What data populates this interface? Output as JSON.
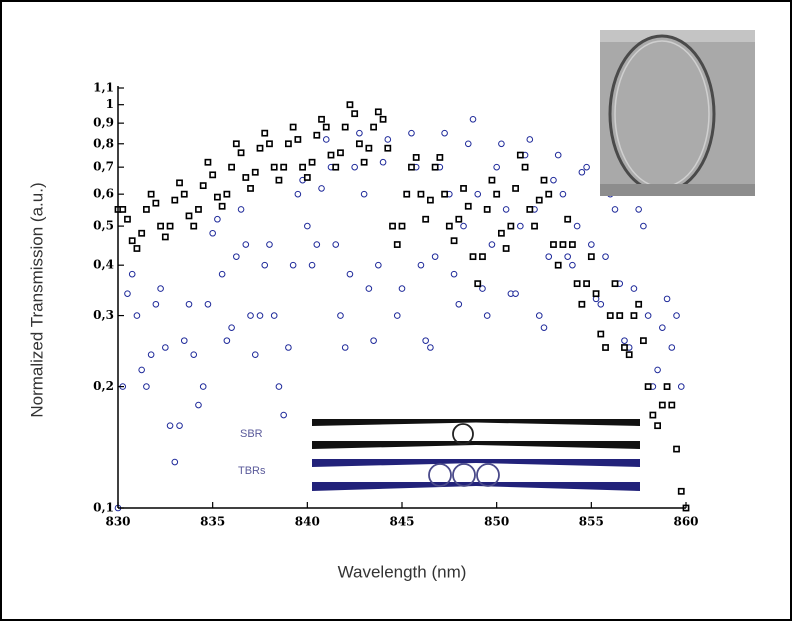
{
  "chart_data": {
    "type": "scatter",
    "xlabel": "Wavelength (nm)",
    "ylabel": "Normalized Transmission (a.u.)",
    "xlim": [
      830,
      860
    ],
    "xticks": [
      830,
      835,
      840,
      845,
      850,
      855,
      860
    ],
    "ylim": [
      0.1,
      1.1
    ],
    "log_y": true,
    "yticks": [
      {
        "value": 0.1,
        "label": "0,1"
      },
      {
        "value": 0.2,
        "label": "0,2"
      },
      {
        "value": 0.3,
        "label": "0,3"
      },
      {
        "value": 0.4,
        "label": "0,4"
      },
      {
        "value": 0.5,
        "label": "0,5"
      },
      {
        "value": 0.6,
        "label": "0,6"
      },
      {
        "value": 0.7,
        "label": "0,7"
      },
      {
        "value": 0.8,
        "label": "0,8"
      },
      {
        "value": 0.9,
        "label": "0,9"
      },
      1,
      {
        "value": 1.1,
        "label": "1,1"
      }
    ],
    "x": [
      830,
      830.25,
      830.5,
      830.75,
      831,
      831.25,
      831.5,
      831.75,
      832,
      832.25,
      832.5,
      832.75,
      833,
      833.25,
      833.5,
      833.75,
      834,
      834.25,
      834.5,
      834.75,
      835,
      835.25,
      835.5,
      835.75,
      836,
      836.25,
      836.5,
      836.75,
      837,
      837.25,
      837.5,
      837.75,
      838,
      838.25,
      838.5,
      838.75,
      839,
      839.25,
      839.5,
      839.75,
      840,
      840.25,
      840.5,
      840.75,
      841,
      841.25,
      841.5,
      841.75,
      842,
      842.25,
      842.5,
      842.75,
      843,
      843.25,
      843.5,
      843.75,
      844,
      844.25,
      844.5,
      844.75,
      845,
      845.25,
      845.5,
      845.75,
      846,
      846.25,
      846.5,
      846.75,
      847,
      847.25,
      847.5,
      847.75,
      848,
      848.25,
      848.5,
      848.75,
      849,
      849.25,
      849.5,
      849.75,
      850,
      850.25,
      850.5,
      850.75,
      851,
      851.25,
      851.5,
      851.75,
      852,
      852.25,
      852.5,
      852.75,
      853,
      853.25,
      853.5,
      853.75,
      854,
      854.25,
      854.5,
      854.75,
      855,
      855.25,
      855.5,
      855.75,
      856,
      856.25,
      856.5,
      856.75,
      857,
      857.25,
      857.5,
      857.75,
      858,
      858.25,
      858.5,
      858.75,
      859,
      859.25,
      859.5,
      859.75,
      860
    ],
    "series": [
      {
        "name": "TBRs",
        "color": "#1f2a9a",
        "marker": "circle",
        "values": [
          0.1,
          0.2,
          0.34,
          0.38,
          0.3,
          0.22,
          0.2,
          0.24,
          0.32,
          0.35,
          0.25,
          0.16,
          0.13,
          0.16,
          0.26,
          0.32,
          0.24,
          0.18,
          0.2,
          0.32,
          0.48,
          0.52,
          0.38,
          0.26,
          0.28,
          0.42,
          0.55,
          0.45,
          0.3,
          0.24,
          0.3,
          0.4,
          0.45,
          0.3,
          0.2,
          0.17,
          0.25,
          0.4,
          0.6,
          0.65,
          0.5,
          0.4,
          0.45,
          0.62,
          0.82,
          0.7,
          0.45,
          0.3,
          0.25,
          0.38,
          0.7,
          0.85,
          0.6,
          0.35,
          0.26,
          0.4,
          0.72,
          0.82,
          0.5,
          0.3,
          0.35,
          0.6,
          0.85,
          0.7,
          0.4,
          0.26,
          0.25,
          0.42,
          0.7,
          0.85,
          0.6,
          0.38,
          0.32,
          0.5,
          0.8,
          0.92,
          0.6,
          0.35,
          0.3,
          0.45,
          0.7,
          0.8,
          0.55,
          0.34,
          0.34,
          0.5,
          0.75,
          0.82,
          0.55,
          0.3,
          0.28,
          0.42,
          0.65,
          0.75,
          0.6,
          0.42,
          0.4,
          0.5,
          0.68,
          0.7,
          0.45,
          0.33,
          0.32,
          0.42,
          0.6,
          0.55,
          0.36,
          0.26,
          0.25,
          0.35,
          0.55,
          0.5,
          0.3,
          0.2,
          0.22,
          0.28,
          0.33,
          0.25,
          0.3,
          0.2,
          0.1
        ]
      },
      {
        "name": "SBR",
        "color": "#000000",
        "marker": "square",
        "values": [
          0.55,
          0.55,
          0.52,
          0.46,
          0.44,
          0.48,
          0.55,
          0.6,
          0.57,
          0.5,
          0.47,
          0.5,
          0.58,
          0.64,
          0.6,
          0.53,
          0.5,
          0.55,
          0.63,
          0.72,
          0.67,
          0.59,
          0.56,
          0.6,
          0.7,
          0.8,
          0.76,
          0.66,
          0.62,
          0.68,
          0.78,
          0.85,
          0.8,
          0.7,
          0.65,
          0.7,
          0.8,
          0.88,
          0.82,
          0.7,
          0.66,
          0.72,
          0.84,
          0.92,
          0.88,
          0.75,
          0.7,
          0.76,
          0.88,
          1.0,
          0.95,
          0.8,
          0.72,
          0.78,
          0.88,
          0.96,
          0.92,
          0.78,
          0.5,
          0.45,
          0.5,
          0.6,
          0.7,
          0.74,
          0.6,
          0.52,
          0.58,
          0.7,
          0.74,
          0.6,
          0.5,
          0.46,
          0.52,
          0.62,
          0.56,
          0.42,
          0.36,
          0.42,
          0.55,
          0.65,
          0.6,
          0.48,
          0.44,
          0.5,
          0.62,
          0.75,
          0.7,
          0.55,
          0.5,
          0.58,
          0.65,
          0.6,
          0.45,
          0.4,
          0.45,
          0.52,
          0.45,
          0.36,
          0.32,
          0.36,
          0.42,
          0.34,
          0.27,
          0.25,
          0.3,
          0.36,
          0.3,
          0.25,
          0.24,
          0.3,
          0.32,
          0.26,
          0.2,
          0.17,
          0.16,
          0.18,
          0.2,
          0.18,
          0.14,
          0.11,
          0.1
        ]
      }
    ]
  }
}
